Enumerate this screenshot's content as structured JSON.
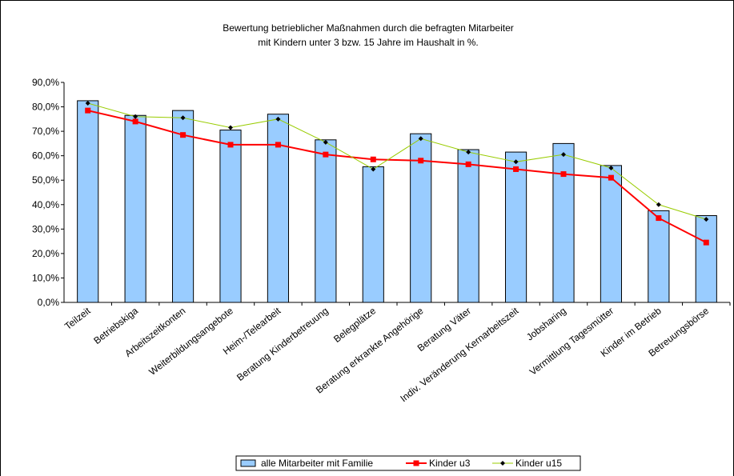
{
  "chart_data": {
    "type": "bar_line",
    "title": [
      "Bewertung betrieblicher Maßnahmen durch die befragten Mitarbeiter",
      "mit Kindern unter 3 bzw. 15 Jahre im Haushalt in %."
    ],
    "categories": [
      "Teilzeit",
      "Betriebskiga",
      "Arbeitszeitkonten",
      "Weiterbildungsangebote",
      "Heim-/Telearbeit",
      "Beratung Kinderbetreuung",
      "Belegplätze",
      "Beratung erkrankte Angehörige",
      "Beratung Väter",
      "Indiv. Veränderung Kernarbeitszeit",
      "Jobsharing",
      "Vermittlung Tagesmütter",
      "Kinder im Betrieb",
      "Betreuungsbörse"
    ],
    "series": [
      {
        "name": "alle Mitarbeiter mit Familie",
        "type": "bar",
        "color": "#99ccff",
        "values": [
          82.5,
          76.5,
          78.5,
          70.5,
          77,
          66.5,
          55.5,
          69,
          62.5,
          61.5,
          65,
          56,
          37.5,
          35.5
        ]
      },
      {
        "name": "Kinder u3",
        "type": "line",
        "marker": "square",
        "color": "#ff0000",
        "values": [
          78.5,
          74,
          68.5,
          64.5,
          64.5,
          60.5,
          58.5,
          58,
          56.5,
          54.5,
          52.5,
          51,
          34.5,
          24.5
        ]
      },
      {
        "name": "Kinder u15",
        "type": "line",
        "marker": "diamond",
        "color": "#99cc00",
        "values": [
          81.5,
          76,
          75.5,
          71.5,
          75,
          65.5,
          54.5,
          67,
          61.5,
          57.5,
          60.5,
          55,
          40,
          34
        ]
      }
    ],
    "ylim": [
      0,
      90
    ],
    "yticks": [
      {
        "value": 0,
        "label": "0,0%"
      },
      {
        "value": 10,
        "label": "10,0%"
      },
      {
        "value": 20,
        "label": "20,0%"
      },
      {
        "value": 30,
        "label": "30,0%"
      },
      {
        "value": 40,
        "label": "40,0%"
      },
      {
        "value": 50,
        "label": "50,0%"
      },
      {
        "value": 60,
        "label": "60,0%"
      },
      {
        "value": 70,
        "label": "70,0%"
      },
      {
        "value": 80,
        "label": "80,0%"
      },
      {
        "value": 90,
        "label": "90,0%"
      }
    ],
    "legend": "bottom"
  }
}
